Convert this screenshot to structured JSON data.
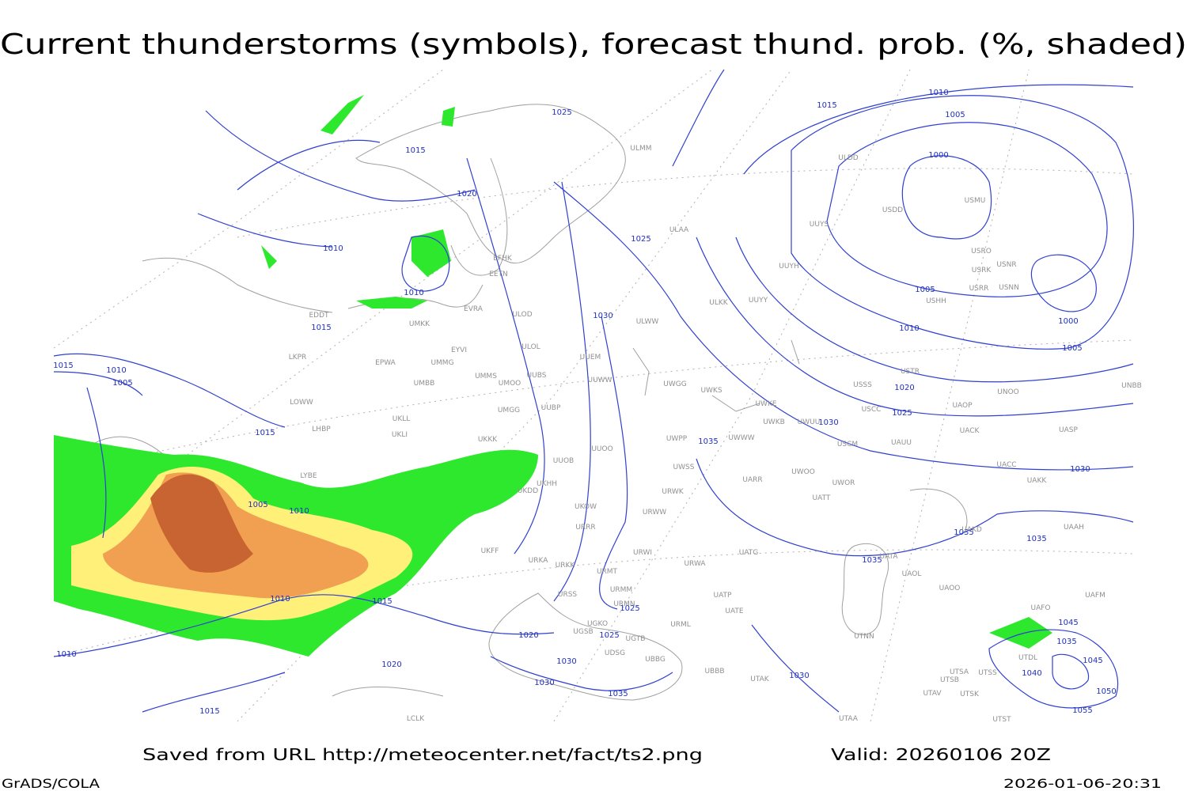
{
  "title": "Current thunderstorms (symbols), forecast thund. prob. (%, shaded)",
  "isobar_labels": [
    "1015",
    "1010",
    "1005",
    "1000",
    "1025",
    "1015",
    "1020",
    "1010",
    "1010",
    "1015",
    "1015",
    "1010",
    "1005",
    "1015",
    "1025",
    "1030",
    "1005",
    "1010",
    "1000",
    "1005",
    "1020",
    "1025",
    "1030",
    "1035",
    "1030",
    "1035",
    "1035",
    "1035",
    "1005",
    "1010",
    "1010",
    "1015",
    "1025",
    "1020",
    "1025",
    "1030",
    "1030",
    "1035",
    "1020",
    "1010",
    "1015",
    "1030",
    "1045",
    "1035",
    "1045",
    "1040",
    "1050",
    "1055"
  ],
  "station_labels": [
    "ULMM",
    "ULDD",
    "USDD",
    "USMU",
    "UUYS",
    "ULAA",
    "USRO",
    "USRK",
    "USNR",
    "UUYH",
    "USRR",
    "USNN",
    "USHH",
    "EFHK",
    "EETN",
    "EVRA",
    "ULOD",
    "ULKK",
    "UUYY",
    "UMKK",
    "ULWW",
    "EDDT",
    "ULOL",
    "EYVI",
    "UUEM",
    "LKPR",
    "EPWA",
    "UMMG",
    "UUWW",
    "UMMS",
    "UUBS",
    "UMOO",
    "UWGG",
    "UWKS",
    "USTR",
    "USSS",
    "UNOO",
    "UNBB",
    "UMBB",
    "LOWW",
    "UMGG",
    "UUBP",
    "UWKE",
    "UWKB",
    "UWUU",
    "USCC",
    "UAOP",
    "UKLL",
    "LHBP",
    "UKLI",
    "USCM",
    "UAUU",
    "UACK",
    "UASP",
    "UKKK",
    "UWPP",
    "UWWW",
    "UUOO",
    "UUOB",
    "LYBE",
    "UWSS",
    "UARR",
    "UWOO",
    "UWOR",
    "UACC",
    "UAKK",
    "UKHH",
    "UKDD",
    "URWK",
    "UATT",
    "UKOW",
    "URWW",
    "URRR",
    "UAAH",
    "UAKD",
    "UKFF",
    "URKA",
    "URKK",
    "URWI",
    "UATG",
    "UATA",
    "URWA",
    "URMT",
    "UAOL",
    "UAOO",
    "UAFM",
    "URSS",
    "URMM",
    "UATP",
    "UATE",
    "URMN",
    "UAFO",
    "URML",
    "UGKO",
    "UGSB",
    "UGTB",
    "UTNN",
    "UBBG",
    "UDSG",
    "UTDL",
    "UBBB",
    "UTAK",
    "UTSA",
    "UTSS",
    "UTSB",
    "UTAV",
    "UTSK",
    "UTST",
    "LCLK",
    "UTAA"
  ],
  "footer": {
    "source": "Saved from URL http://meteocenter.net/fact/ts2.png",
    "valid": "Valid: 20260106 20Z",
    "software": "GrADS/COLA",
    "timestamp": "2026-01-06-20:31"
  }
}
